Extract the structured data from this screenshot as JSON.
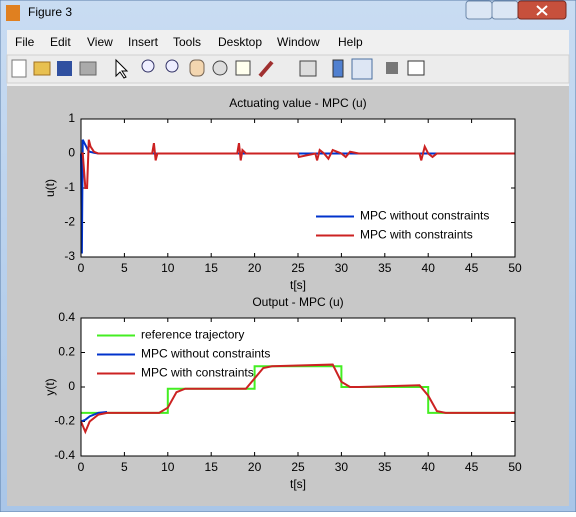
{
  "window": {
    "title": "Figure 3"
  },
  "menu": [
    "File",
    "Edit",
    "View",
    "Insert",
    "Tools",
    "Desktop",
    "Window",
    "Help"
  ],
  "chart_data": [
    {
      "type": "line",
      "title": "Actuating value - MPC (u)",
      "x_label": "t[s]",
      "y_label": "u(t)",
      "xlim": [
        0,
        50
      ],
      "xticks": [
        0,
        5,
        10,
        15,
        20,
        25,
        30,
        35,
        40,
        45,
        50
      ],
      "ylim": [
        -3,
        1
      ],
      "yticks": [
        -3,
        -2,
        -1,
        0,
        1
      ],
      "legend": "lower right",
      "series": [
        {
          "name": "MPC without constraints",
          "color": "#0033cc",
          "x": [
            0,
            0.1,
            0.2,
            0.4,
            0.6,
            0.8,
            1,
            1.5,
            2,
            50
          ],
          "values": [
            0,
            -2.9,
            0.4,
            0.3,
            0.2,
            0.1,
            0.05,
            0.02,
            0,
            0
          ]
        },
        {
          "name": "MPC with constraints",
          "color": "#cc2222",
          "x": [
            0,
            0.2,
            0.5,
            0.7,
            0.9,
            1.1,
            1.5,
            2,
            8.2,
            8.4,
            8.6,
            8.8,
            9,
            10,
            18,
            18.2,
            18.4,
            18.6,
            19,
            20,
            25,
            25.1,
            27,
            27.2,
            27.5,
            28,
            28.5,
            29,
            30,
            30.5,
            31,
            32,
            39,
            39.2,
            39.6,
            40,
            40.5,
            41,
            50
          ],
          "values": [
            0,
            0,
            -1,
            -1,
            0.4,
            0.2,
            0.05,
            0,
            0,
            0.3,
            -0.2,
            0,
            0,
            0,
            0,
            0.3,
            -0.2,
            0.1,
            0,
            0,
            0,
            -0.1,
            0,
            -0.2,
            0.1,
            0,
            -0.15,
            0.1,
            0,
            -0.1,
            0.05,
            0,
            0,
            -0.2,
            0.2,
            0,
            -0.1,
            0,
            0
          ]
        }
      ]
    },
    {
      "type": "line",
      "title": "Output - MPC (u)",
      "x_label": "t[s]",
      "y_label": "y(t)",
      "xlim": [
        0,
        50
      ],
      "xticks": [
        0,
        5,
        10,
        15,
        20,
        25,
        30,
        35,
        40,
        45,
        50
      ],
      "ylim": [
        -0.4,
        0.4
      ],
      "yticks": [
        -0.4,
        -0.2,
        0,
        0.2,
        0.4
      ],
      "legend": "upper left",
      "series": [
        {
          "name": "reference trajectory",
          "color": "#44ee22",
          "x": [
            0,
            10,
            10,
            20,
            20,
            30,
            30,
            40,
            40,
            50
          ],
          "values": [
            -0.15,
            -0.15,
            -0.01,
            -0.01,
            0.12,
            0.12,
            0,
            0,
            -0.15,
            -0.15
          ]
        },
        {
          "name": "MPC without constraints",
          "color": "#0033cc",
          "x": [
            0,
            0.5,
            1,
            2,
            3
          ],
          "values": [
            -0.2,
            -0.19,
            -0.17,
            -0.15,
            -0.145
          ]
        },
        {
          "name": "MPC with constraints",
          "color": "#cc2222",
          "x": [
            0,
            0.5,
            1,
            2,
            3,
            9,
            10,
            11,
            12,
            19,
            20,
            21,
            22,
            29,
            30,
            31,
            32,
            39,
            40,
            41,
            42,
            50
          ],
          "values": [
            -0.2,
            -0.26,
            -0.2,
            -0.16,
            -0.15,
            -0.15,
            -0.12,
            -0.03,
            -0.01,
            -0.01,
            0.05,
            0.11,
            0.12,
            0.13,
            0.03,
            0,
            0,
            0.01,
            -0.05,
            -0.14,
            -0.15,
            -0.15
          ]
        }
      ]
    }
  ]
}
